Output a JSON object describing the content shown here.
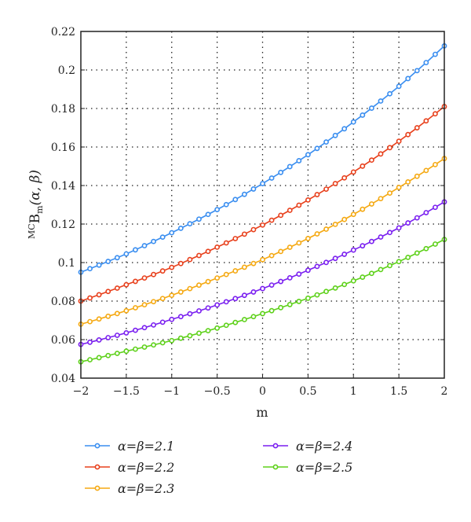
{
  "chart_data": {
    "type": "line",
    "title": "",
    "xlabel": "m",
    "ylabel": "MCBm(α, β)",
    "ylabel_parts": {
      "sup": "MC",
      "main": "B",
      "sub": "m",
      "args": "(α, β)"
    },
    "xlim": [
      -2,
      2
    ],
    "ylim": [
      0.04,
      0.22
    ],
    "xticks": [
      "-2",
      "-1.5",
      "-1",
      "-0.5",
      "0",
      "0.5",
      "1",
      "1.5",
      "2"
    ],
    "xtick_values": [
      -2,
      -1.5,
      -1,
      -0.5,
      0,
      0.5,
      1,
      1.5,
      2
    ],
    "yticks": [
      "0.04",
      "0.06",
      "0.08",
      "0.1",
      "0.12",
      "0.14",
      "0.16",
      "0.18",
      "0.2",
      "0.22"
    ],
    "ytick_values": [
      0.04,
      0.06,
      0.08,
      0.1,
      0.12,
      0.14,
      0.16,
      0.18,
      0.2,
      0.22
    ],
    "grid": true,
    "legend_placement": "bottom",
    "marker_step": 0.1,
    "x": [
      -2,
      -1.5,
      -1,
      -0.5,
      0,
      0.5,
      1,
      1.5,
      2
    ],
    "series": [
      {
        "name": "α=β=2.1",
        "color": "#3a8ef0",
        "values": [
          0.095,
          0.1045,
          0.1155,
          0.1275,
          0.141,
          0.156,
          0.173,
          0.1915,
          0.2125
        ]
      },
      {
        "name": "α=β=2.2",
        "color": "#e8401c",
        "values": [
          0.08,
          0.0885,
          0.0975,
          0.108,
          0.1195,
          0.1325,
          0.147,
          0.163,
          0.181
        ]
      },
      {
        "name": "α=β=2.3",
        "color": "#f5a912",
        "values": [
          0.068,
          0.075,
          0.083,
          0.092,
          0.1015,
          0.1125,
          0.125,
          0.139,
          0.154
        ]
      },
      {
        "name": "α=β=2.4",
        "color": "#7a1ff0",
        "values": [
          0.0575,
          0.0635,
          0.0705,
          0.078,
          0.0865,
          0.096,
          0.1065,
          0.118,
          0.1315
        ]
      },
      {
        "name": "α=β=2.5",
        "color": "#5ed11a",
        "values": [
          0.0485,
          0.054,
          0.0595,
          0.066,
          0.0735,
          0.0815,
          0.0905,
          0.1005,
          0.112
        ]
      }
    ]
  }
}
